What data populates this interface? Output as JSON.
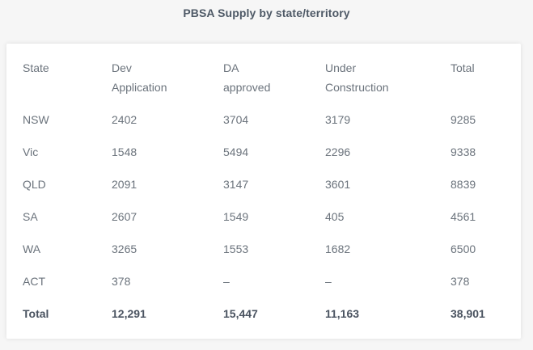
{
  "title": "PBSA Supply by state/territory",
  "table": {
    "headers": [
      [
        "State"
      ],
      [
        "Dev",
        "Application"
      ],
      [
        "DA",
        "approved"
      ],
      [
        "Under",
        "Construction"
      ],
      [
        "Total"
      ]
    ],
    "rows": [
      [
        "NSW",
        "2402",
        "3704",
        "3179",
        "9285"
      ],
      [
        "Vic",
        "1548",
        "5494",
        "2296",
        "9338"
      ],
      [
        "QLD",
        "2091",
        "3147",
        "3601",
        "8839"
      ],
      [
        "SA",
        "2607",
        "1549",
        "405",
        "4561"
      ],
      [
        "WA",
        "3265",
        "1553",
        "1682",
        "6500"
      ],
      [
        "ACT",
        "378",
        "–",
        "–",
        "378"
      ]
    ],
    "total": [
      "Total",
      "12,291",
      "15,447",
      "11,163",
      "38,901"
    ]
  }
}
